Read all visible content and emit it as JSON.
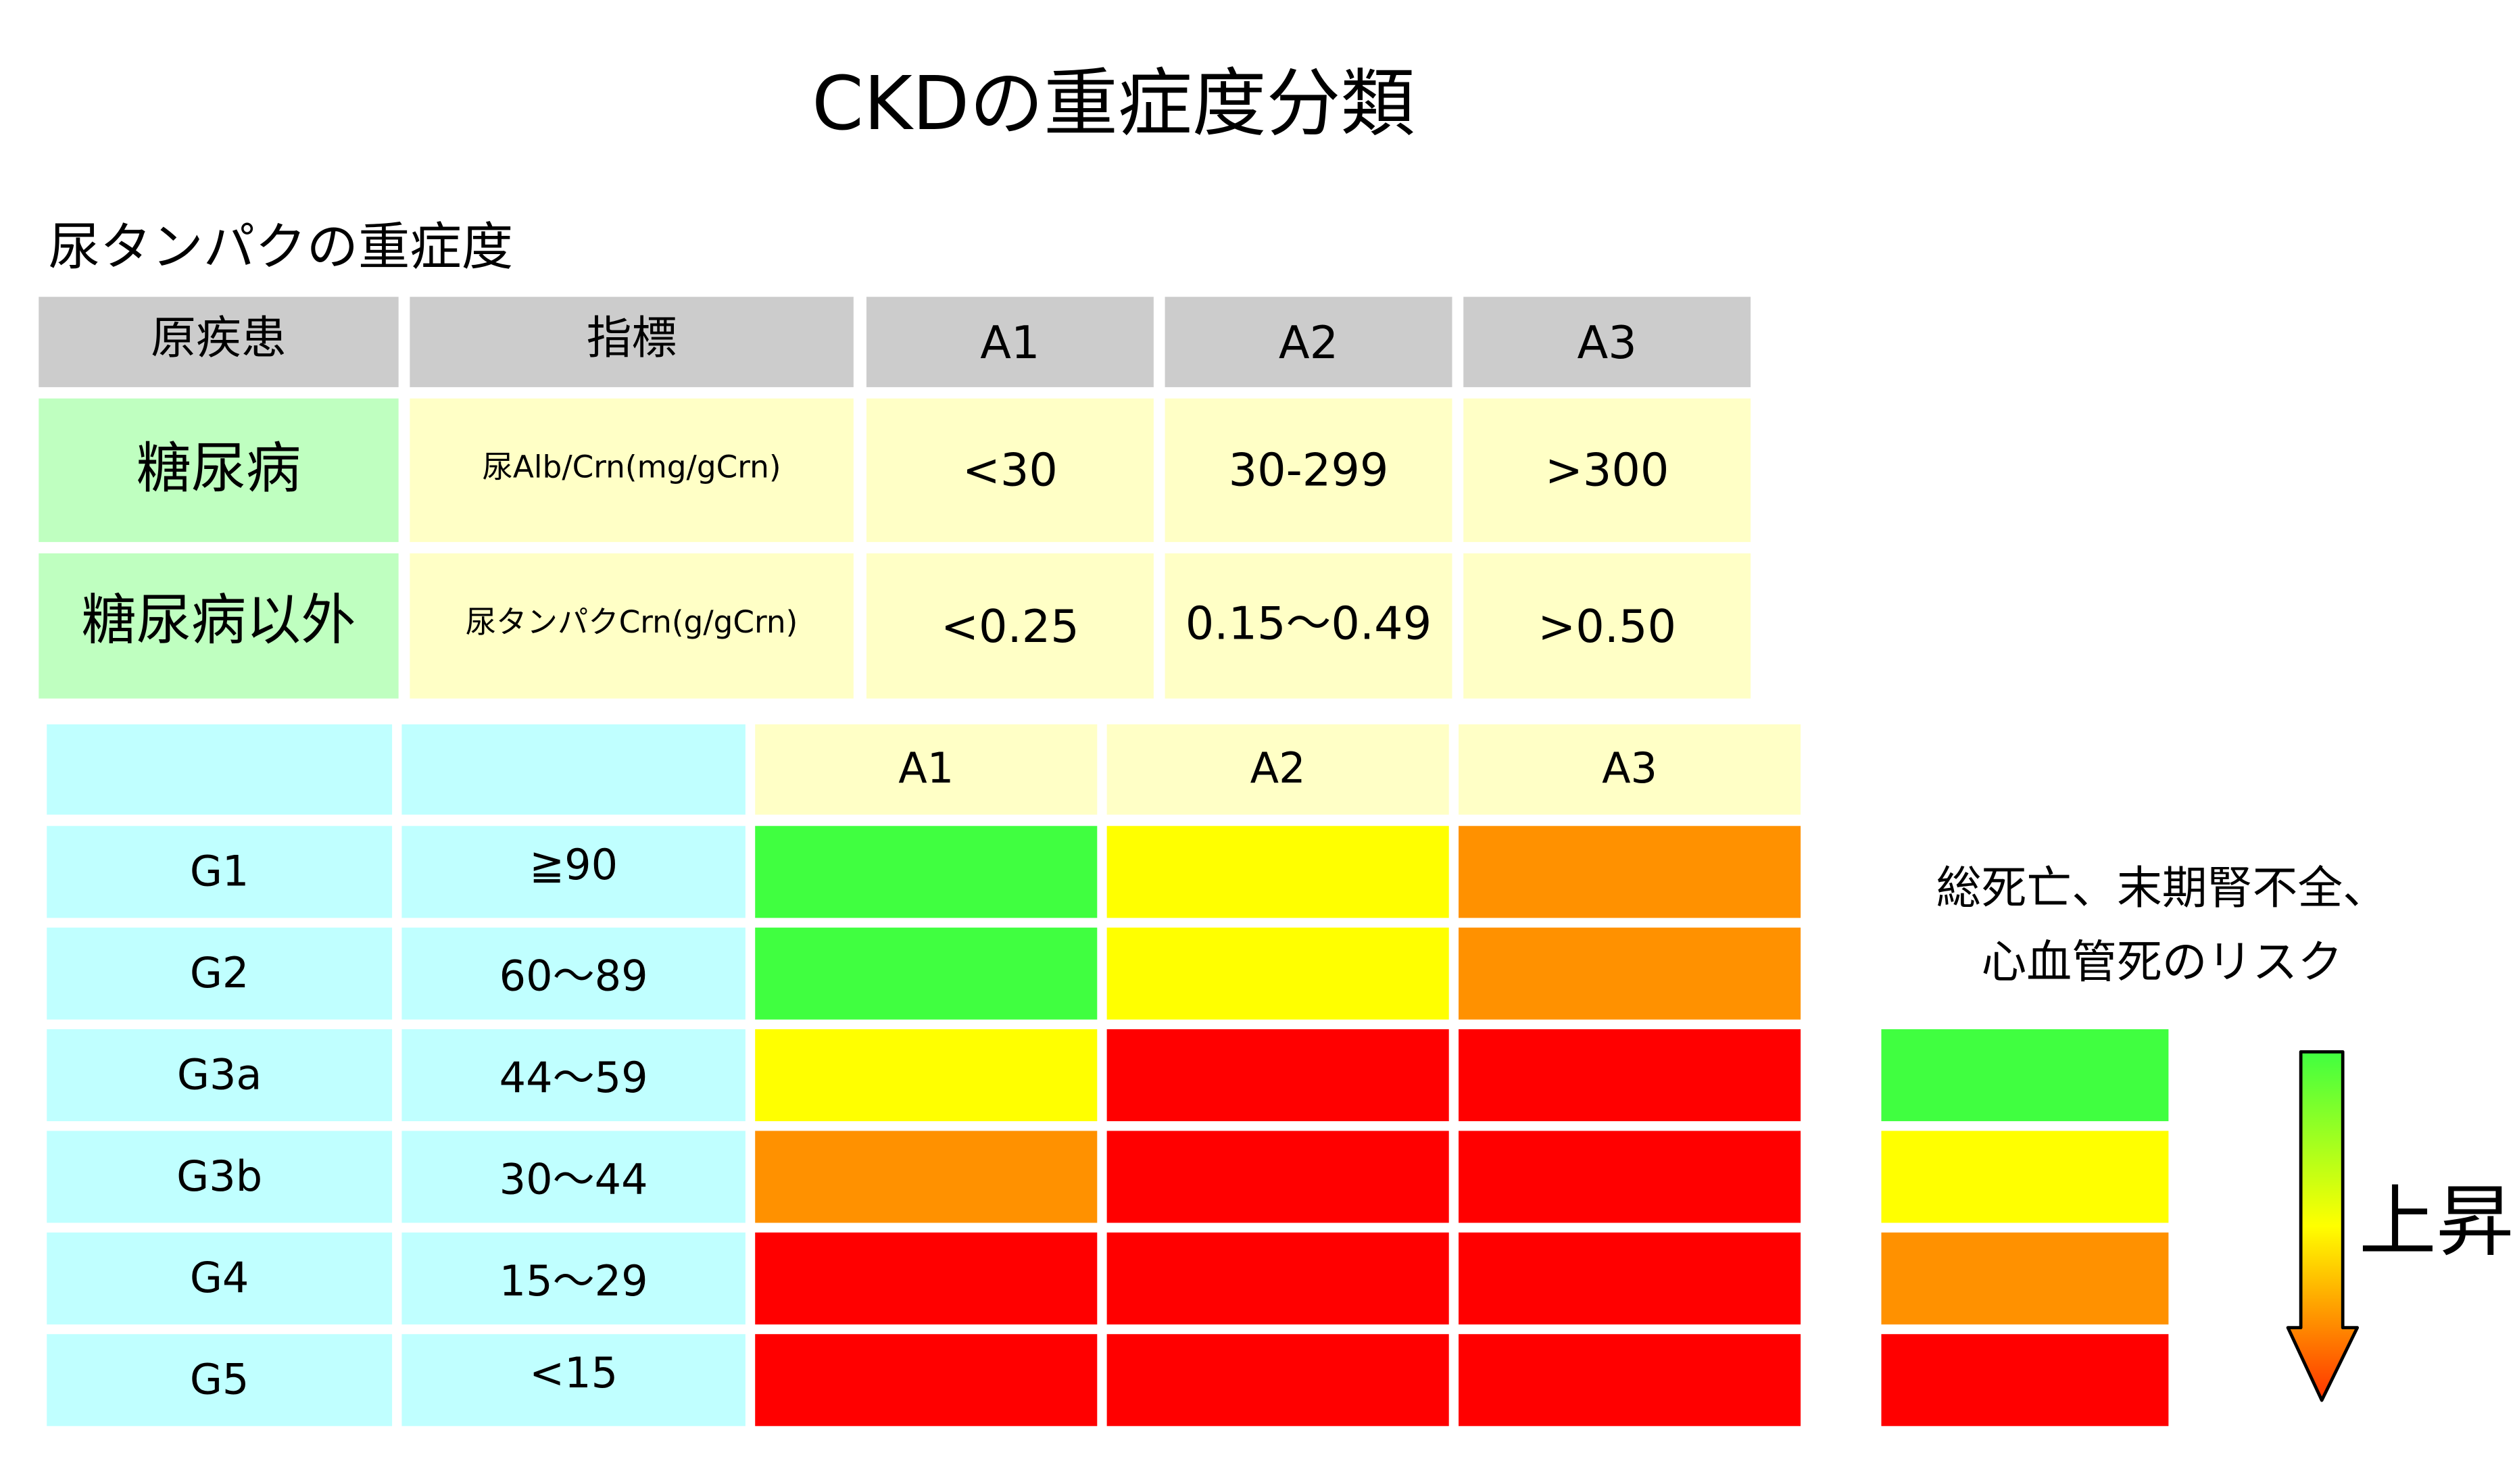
{
  "title": "CKDの重症度分類",
  "subtitle": "尿タンパクの重症度",
  "protein_table": {
    "headers": [
      "原疾患",
      "指標",
      "A1",
      "A2",
      "A3"
    ],
    "rows": [
      [
        "糖尿病",
        "尿Alb/Crn(mg/gCrn)",
        "<30",
        "30-299",
        ">300"
      ],
      [
        "糖尿病以外",
        "尿タンパクCrn(g/gCrn)",
        "<0.25",
        "0.15〜0.49",
        ">0.50"
      ]
    ]
  },
  "grade_table": {
    "headers": [
      "",
      "",
      "A1",
      "A2",
      "A3"
    ],
    "rows": [
      {
        "grade": "G1",
        "gfr": "≧90",
        "risk": [
          0,
          1,
          2
        ]
      },
      {
        "grade": "G2",
        "gfr": "60〜89",
        "risk": [
          0,
          1,
          2
        ]
      },
      {
        "grade": "G3a",
        "gfr": "44〜59",
        "risk": [
          1,
          3,
          3
        ]
      },
      {
        "grade": "G3b",
        "gfr": "30〜44",
        "risk": [
          2,
          3,
          3
        ]
      },
      {
        "grade": "G4",
        "gfr": "15〜29",
        "risk": [
          3,
          3,
          3
        ]
      },
      {
        "grade": "G5",
        "gfr": "<15",
        "risk": [
          3,
          3,
          3
        ]
      }
    ]
  },
  "legend": {
    "line1": "総死亡、末期腎不全、",
    "line2": "心血管死のリスク",
    "arrow_label": "上昇",
    "risk_colors": [
      "#40ff40",
      "#ffff00",
      "#ff9100",
      "#ff0000"
    ]
  }
}
